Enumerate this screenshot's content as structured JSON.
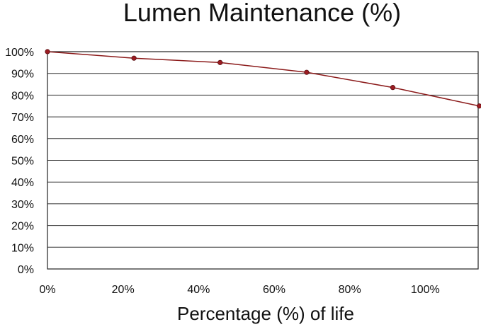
{
  "chart_data": {
    "type": "line",
    "title": "Lumen Maintenance (%)",
    "xlabel": "Percentage (%) of life",
    "ylabel": "",
    "xlim": [
      0,
      114
    ],
    "ylim": [
      0,
      100
    ],
    "x_ticks": [
      0,
      20,
      40,
      60,
      80,
      100
    ],
    "x_tick_labels": [
      "0%",
      "20%",
      "40%",
      "60%",
      "80%",
      "100%"
    ],
    "y_ticks": [
      0,
      10,
      20,
      30,
      40,
      50,
      60,
      70,
      80,
      90,
      100
    ],
    "y_tick_labels": [
      "0%",
      "10%",
      "20%",
      "30%",
      "40%",
      "50%",
      "60%",
      "70%",
      "80%",
      "90%",
      "100%"
    ],
    "grid": "horizontal",
    "legend": "none",
    "series": [
      {
        "color": "#8b1a1a",
        "marker_color": "#9b1c22",
        "x": [
          0,
          22.9,
          45.7,
          68.6,
          91.4,
          114.3
        ],
        "y": [
          100,
          97,
          95,
          90.5,
          83.5,
          75
        ]
      }
    ]
  }
}
